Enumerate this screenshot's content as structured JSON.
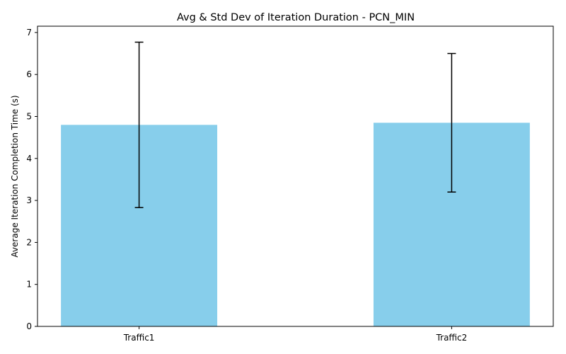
{
  "chart_data": {
    "type": "bar",
    "title": "Avg & Std Dev of Iteration Duration - PCN_MIN",
    "xlabel": "",
    "ylabel": "Average Iteration Completion Time (s)",
    "categories": [
      "Traffic1",
      "Traffic2"
    ],
    "values": [
      4.8,
      4.85
    ],
    "error": [
      1.97,
      1.65
    ],
    "ylim": [
      0,
      7.15
    ],
    "yticks": [
      0,
      1,
      2,
      3,
      4,
      5,
      6,
      7
    ],
    "grid": false,
    "bar_color": "#87CEEB",
    "error_color": "#000000"
  }
}
